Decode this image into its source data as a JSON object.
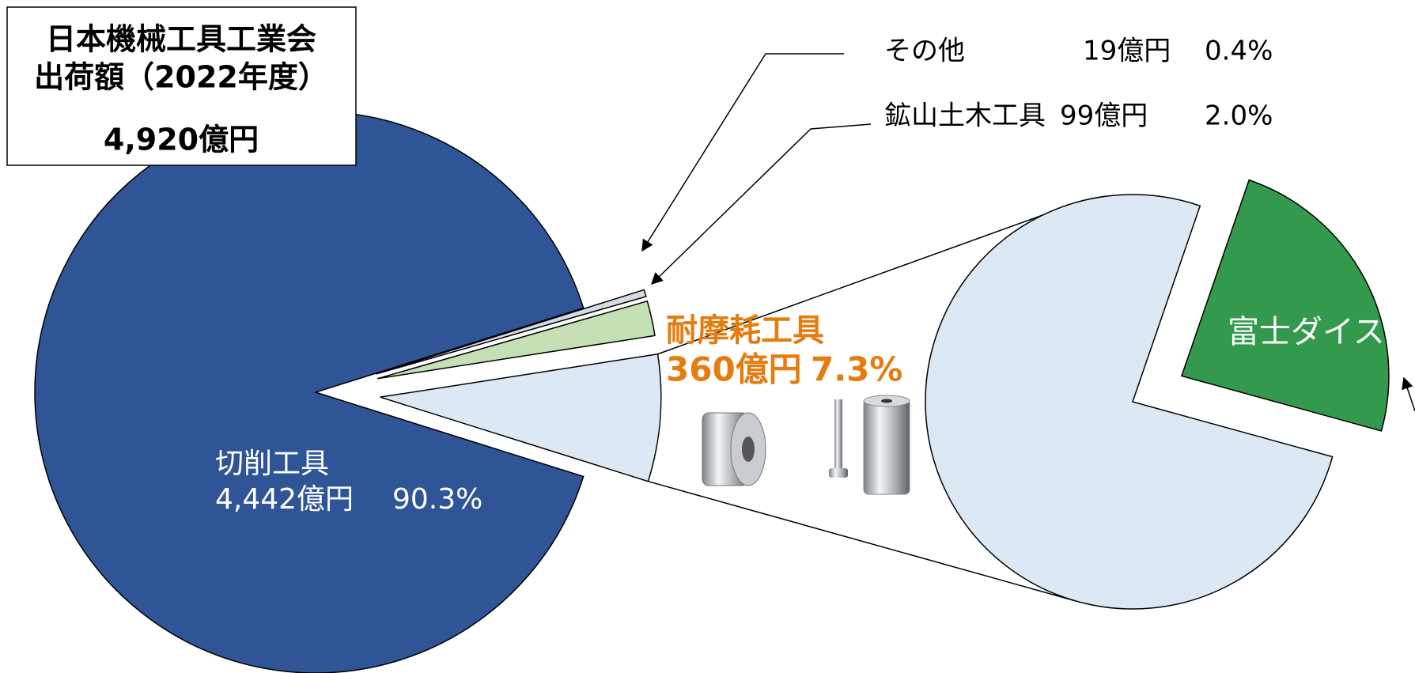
{
  "chart_data": {
    "type": "pie",
    "title": "日本機械工具工業会",
    "subtitle": "出荷額（2022年度）",
    "total_label": "4,920億円",
    "categories": [
      "切削工具",
      "耐摩耗工具",
      "鉱山土木工具",
      "その他"
    ],
    "values": [
      90.3,
      7.3,
      2.0,
      0.4
    ],
    "value_labels": [
      "90.3%",
      "7.3%",
      "2.0%",
      "0.4%"
    ],
    "amount_labels": [
      "4,442億円",
      "360億円",
      "99億円",
      "19億円"
    ],
    "colors": [
      "#2f5597",
      "#dde8f5",
      "#c5e0b4",
      "#d6dce5"
    ],
    "sub_pie": {
      "categories": [
        "富士ダイス",
        null
      ],
      "values": [
        24,
        76
      ],
      "colors": [
        "#339a4d",
        "#dde8f5"
      ]
    }
  }
}
